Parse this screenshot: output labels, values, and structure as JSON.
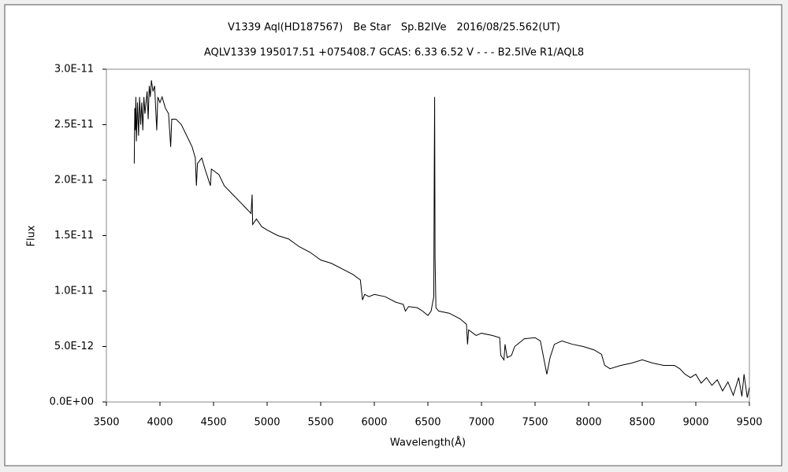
{
  "chart_data": {
    "type": "line",
    "title": "V1339 Aql(HD187567)　Be Star　Sp.B2IVe　2016/08/25.562(UT)",
    "subtitle": "AQLV1339 195017.51 +075408.7 GCAS: 6.33 6.52 V - - - B2.5IVe R1/AQL8",
    "x_label": "Wavelength(Å)",
    "y_label": "Flux",
    "xlim": [
      3500,
      9500
    ],
    "xticks": [
      3500,
      4000,
      4500,
      5000,
      5500,
      6000,
      6500,
      7000,
      7500,
      8000,
      8500,
      9000,
      9500
    ],
    "ylim": [
      0,
      3e-11
    ],
    "yticks": [
      {
        "value": 0,
        "label": "0.0E+00"
      },
      {
        "value": 5e-12,
        "label": "5.0E-12"
      },
      {
        "value": 1e-11,
        "label": "1.0E-11"
      },
      {
        "value": 1.5e-11,
        "label": "1.5E-11"
      },
      {
        "value": 2e-11,
        "label": "2.0E-11"
      },
      {
        "value": 2.5e-11,
        "label": "2.5E-11"
      },
      {
        "value": 3e-11,
        "label": "3.0E-11"
      }
    ],
    "grid": false,
    "x": [
      3760,
      3765,
      3770,
      3775,
      3780,
      3790,
      3800,
      3810,
      3820,
      3830,
      3840,
      3850,
      3860,
      3880,
      3890,
      3900,
      3910,
      3920,
      3935,
      3950,
      3970,
      3980,
      4000,
      4020,
      4050,
      4080,
      4100,
      4110,
      4150,
      4200,
      4250,
      4300,
      4330,
      4340,
      4350,
      4390,
      4420,
      4471,
      4480,
      4550,
      4600,
      4650,
      4700,
      4750,
      4800,
      4850,
      4860,
      4865,
      4900,
      4950,
      5000,
      5100,
      5200,
      5300,
      5400,
      5500,
      5600,
      5700,
      5800,
      5870,
      5890,
      5910,
      5950,
      6000,
      6100,
      6200,
      6270,
      6290,
      6320,
      6400,
      6450,
      6500,
      6530,
      6555,
      6560,
      6563,
      6567,
      6575,
      6600,
      6700,
      6800,
      6860,
      6870,
      6880,
      6950,
      7000,
      7100,
      7170,
      7180,
      7210,
      7220,
      7240,
      7280,
      7310,
      7400,
      7500,
      7550,
      7590,
      7610,
      7640,
      7680,
      7750,
      7850,
      7950,
      8050,
      8120,
      8150,
      8200,
      8300,
      8400,
      8500,
      8600,
      8700,
      8800,
      8850,
      8900,
      8950,
      9000,
      9050,
      9100,
      9150,
      9200,
      9250,
      9300,
      9350,
      9400,
      9430,
      9450,
      9480,
      9500
    ],
    "series": [
      {
        "color": "#000000",
        "values": [
          2.15e-11,
          2.65e-11,
          2.45e-11,
          2.75e-11,
          2.35e-11,
          2.7e-11,
          2.4e-11,
          2.75e-11,
          2.5e-11,
          2.7e-11,
          2.45e-11,
          2.75e-11,
          2.6e-11,
          2.8e-11,
          2.55e-11,
          2.85e-11,
          2.75e-11,
          2.9e-11,
          2.8e-11,
          2.85e-11,
          2.45e-11,
          2.75e-11,
          2.7e-11,
          2.75e-11,
          2.65e-11,
          2.6e-11,
          2.3e-11,
          2.55e-11,
          2.55e-11,
          2.5e-11,
          2.4e-11,
          2.3e-11,
          2.2e-11,
          1.95e-11,
          2.15e-11,
          2.2e-11,
          2.1e-11,
          1.95e-11,
          2.1e-11,
          2.05e-11,
          1.95e-11,
          1.9e-11,
          1.85e-11,
          1.8e-11,
          1.75e-11,
          1.7e-11,
          1.87e-11,
          1.6e-11,
          1.65e-11,
          1.58e-11,
          1.55e-11,
          1.5e-11,
          1.47e-11,
          1.4e-11,
          1.35e-11,
          1.28e-11,
          1.25e-11,
          1.2e-11,
          1.15e-11,
          1.1e-11,
          9.2e-12,
          9.7e-12,
          9.5e-12,
          9.7e-12,
          9.5e-12,
          9e-12,
          8.8e-12,
          8.2e-12,
          8.6e-12,
          8.5e-12,
          8.2e-12,
          7.8e-12,
          8.2e-12,
          9.5e-12,
          2.2e-11,
          2.75e-11,
          1.3e-11,
          8.5e-12,
          8.2e-12,
          8e-12,
          7.5e-12,
          7e-12,
          5.2e-12,
          6.5e-12,
          6e-12,
          6.2e-12,
          6e-12,
          5.8e-12,
          4.2e-12,
          3.8e-12,
          5.2e-12,
          4e-12,
          4.2e-12,
          5e-12,
          5.7e-12,
          5.8e-12,
          5.5e-12,
          3.5e-12,
          2.5e-12,
          4e-12,
          5.2e-12,
          5.5e-12,
          5.2e-12,
          5e-12,
          4.7e-12,
          4.3e-12,
          3.3e-12,
          3e-12,
          3.3e-12,
          3.5e-12,
          3.8e-12,
          3.5e-12,
          3.3e-12,
          3.3e-12,
          3e-12,
          2.5e-12,
          2.2e-12,
          2.5e-12,
          1.7e-12,
          2.2e-12,
          1.5e-12,
          2e-12,
          1e-12,
          1.8e-12,
          6e-13,
          2.2e-12,
          5e-13,
          2.5e-12,
          4e-13,
          1.3e-12
        ]
      }
    ]
  }
}
